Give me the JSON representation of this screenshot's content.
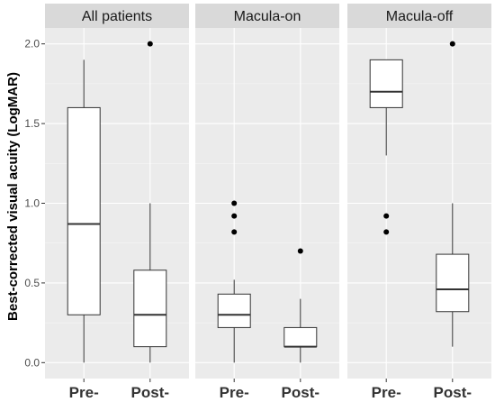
{
  "chart_data": {
    "type": "box",
    "ylabel": "Best-corrected visual acuity (LogMAR)",
    "xlabel": "",
    "ylim": [
      -0.1,
      2.1
    ],
    "y_ticks": [
      "0.0",
      "0.5",
      "1.0",
      "1.5",
      "2.0"
    ],
    "y_tick_values": [
      0,
      0.5,
      1.0,
      1.5,
      2.0
    ],
    "categories": [
      "Pre-",
      "Post-"
    ],
    "grid": true,
    "panels": [
      {
        "title": "All patients",
        "boxes": [
          {
            "category": "Pre-",
            "min": 0.0,
            "q1": 0.3,
            "median": 0.87,
            "q3": 1.6,
            "max": 1.9,
            "outliers": []
          },
          {
            "category": "Post-",
            "min": 0.0,
            "q1": 0.1,
            "median": 0.3,
            "q3": 0.58,
            "max": 1.0,
            "outliers": [
              2.0
            ]
          }
        ]
      },
      {
        "title": "Macula-on",
        "boxes": [
          {
            "category": "Pre-",
            "min": 0.0,
            "q1": 0.22,
            "median": 0.3,
            "q3": 0.43,
            "max": 0.52,
            "outliers": [
              0.82,
              0.92,
              1.0
            ]
          },
          {
            "category": "Post-",
            "min": 0.0,
            "q1": 0.1,
            "median": 0.1,
            "q3": 0.22,
            "max": 0.4,
            "outliers": [
              0.7
            ]
          }
        ]
      },
      {
        "title": "Macula-off",
        "boxes": [
          {
            "category": "Pre-",
            "min": 1.3,
            "q1": 1.6,
            "median": 1.7,
            "q3": 1.9,
            "max": 1.9,
            "outliers": [
              0.82,
              0.92
            ]
          },
          {
            "category": "Post-",
            "min": 0.1,
            "q1": 0.32,
            "median": 0.46,
            "q3": 0.68,
            "max": 1.0,
            "outliers": [
              2.0
            ]
          }
        ]
      }
    ]
  },
  "colors": {
    "panel_background": "#ebebeb",
    "strip_background": "#d9d9d9",
    "grid_major": "#ffffff",
    "box_fill": "#ffffff",
    "box_line": "#333333",
    "outlier": "#000000"
  }
}
